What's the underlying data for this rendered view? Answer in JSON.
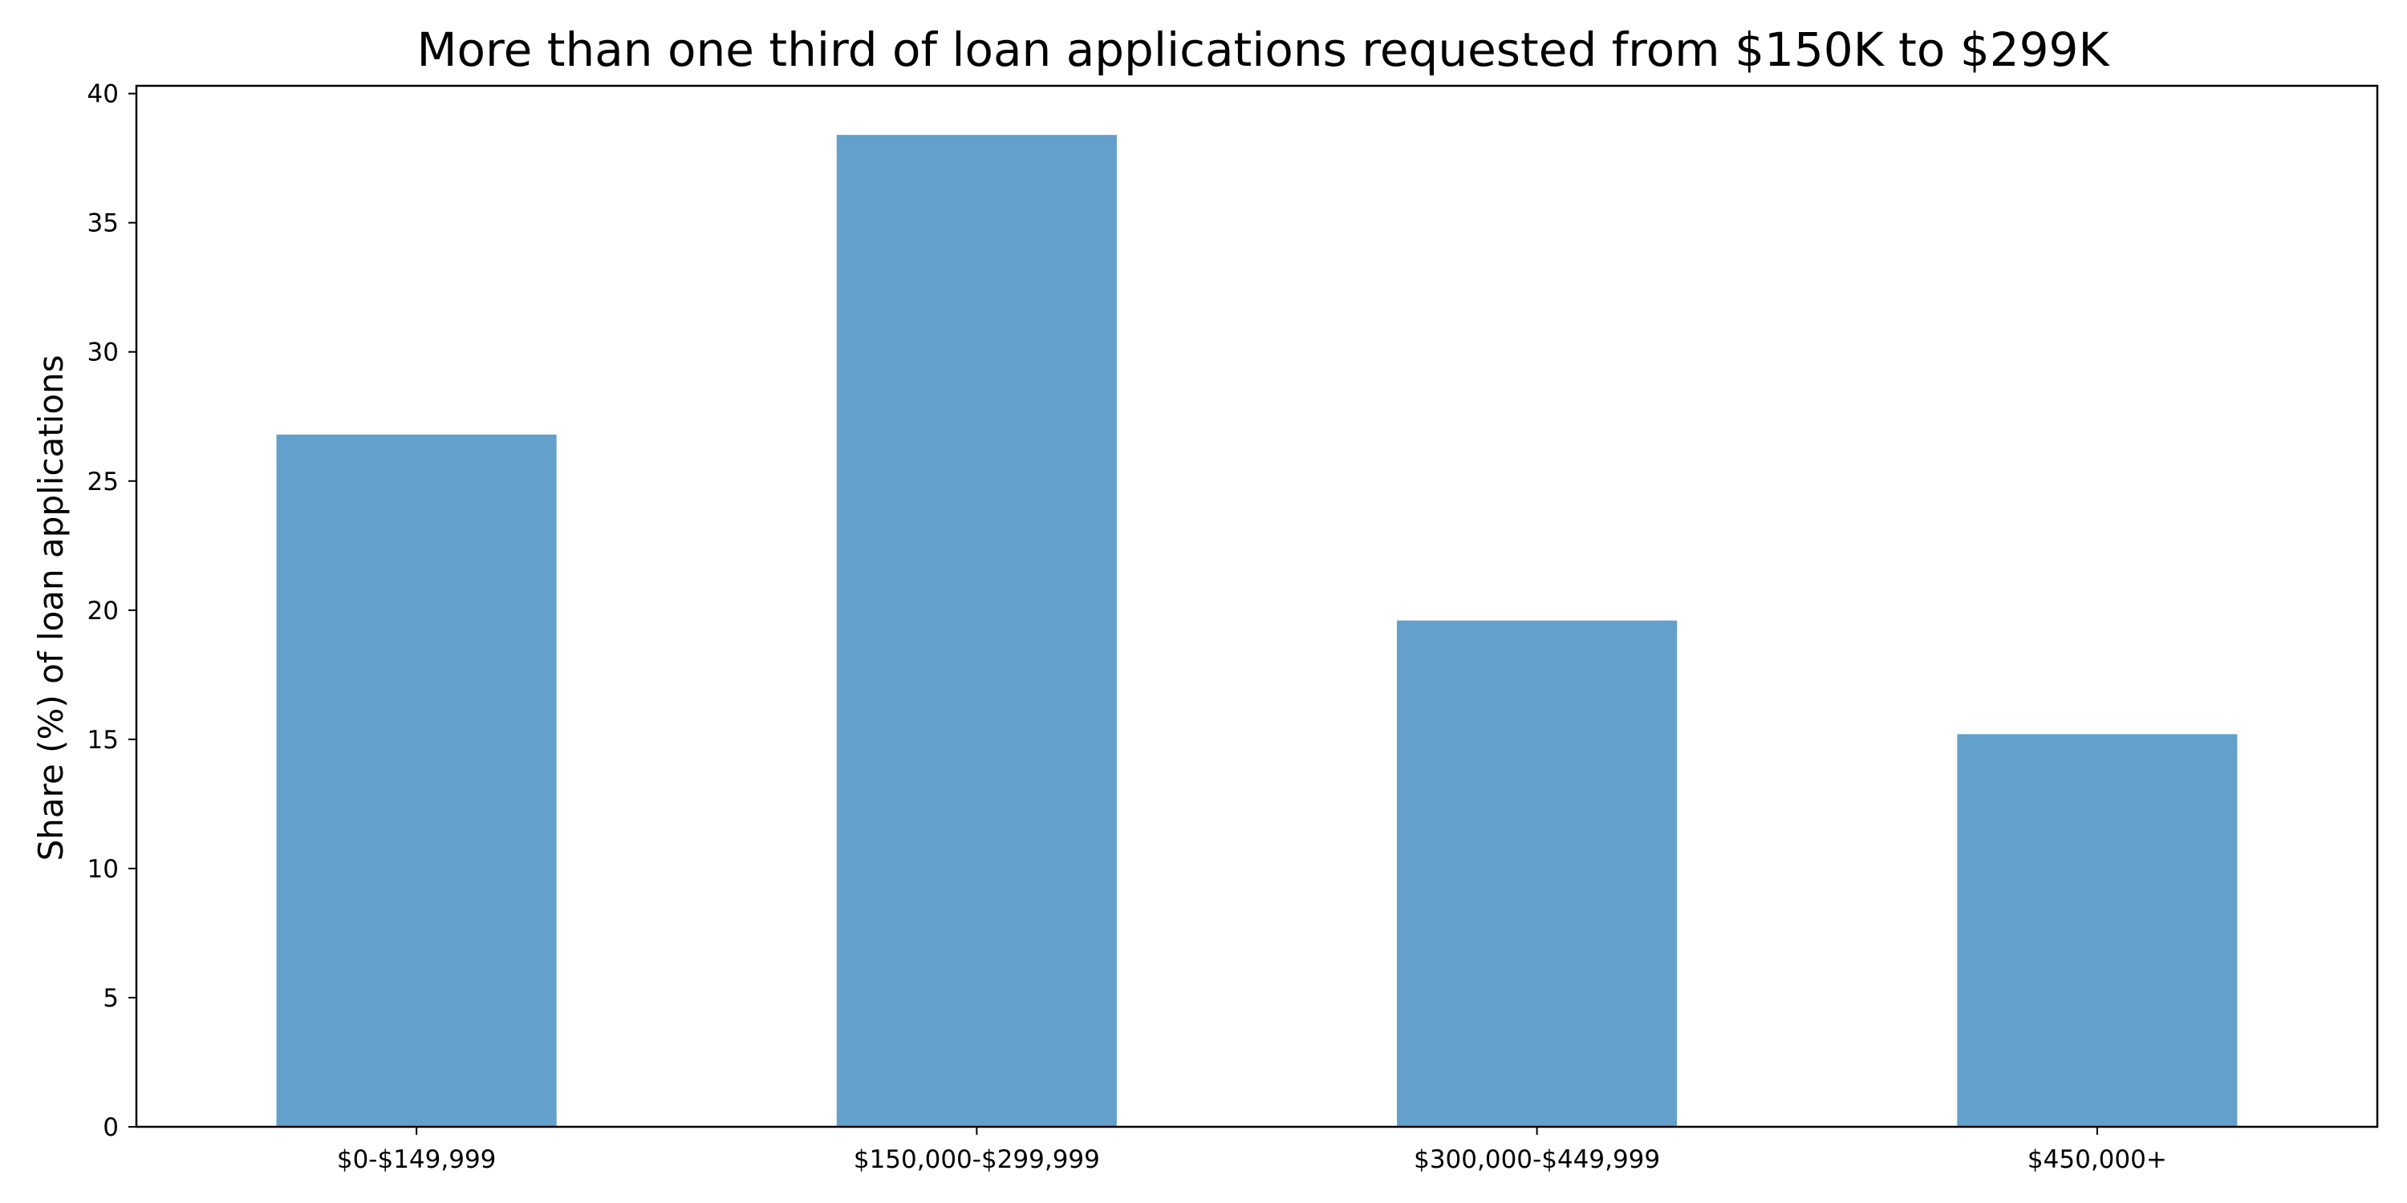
{
  "chart_data": {
    "type": "bar",
    "title": "More than one third of loan applications requested from $150K to $299K",
    "xlabel": "",
    "ylabel": "Share (%) of loan applications",
    "categories": [
      "$0-$149,999",
      "$150,000-$299,999",
      "$300,000-$449,999",
      "$450,000+"
    ],
    "series": [
      {
        "values": [
          26.8,
          38.4,
          19.6,
          15.2
        ]
      }
    ],
    "ylim": [
      0,
      40.3
    ],
    "yticks": [
      0,
      5,
      10,
      15,
      20,
      25,
      30,
      35,
      40
    ],
    "ytick_labels": [
      "0",
      "5",
      "10",
      "15",
      "20",
      "25",
      "30",
      "35",
      "40"
    ],
    "grid": false,
    "legend": "none",
    "bar_color": "#63a0cb"
  }
}
